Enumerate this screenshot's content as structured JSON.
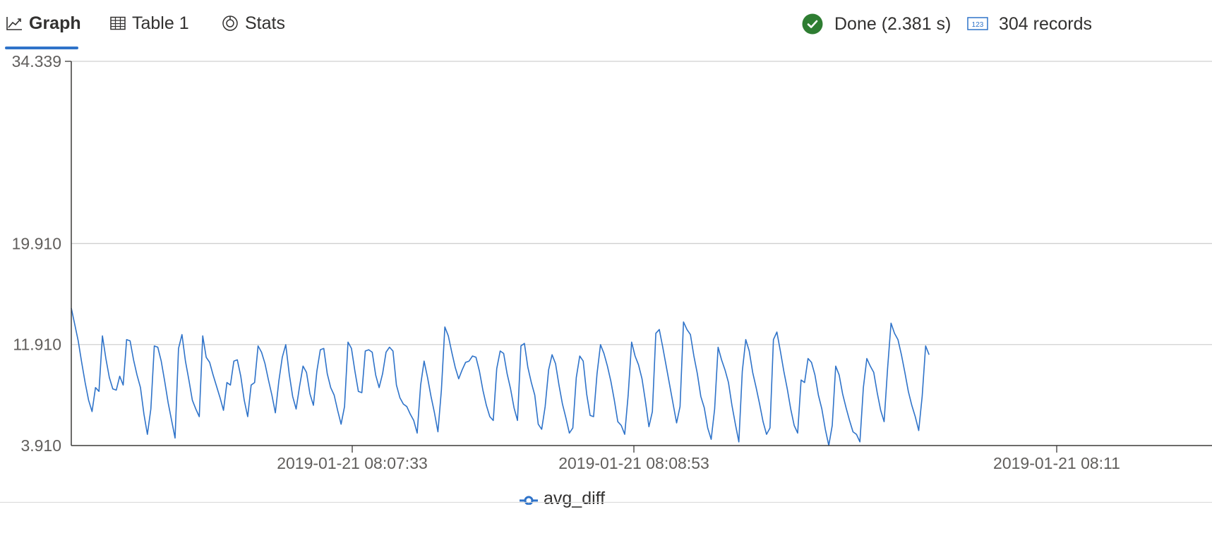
{
  "tabs": [
    {
      "label": "Graph",
      "icon": "line-chart-icon",
      "active": true
    },
    {
      "label": "Table 1",
      "icon": "table-icon",
      "active": false
    },
    {
      "label": "Stats",
      "icon": "stats-icon",
      "active": false
    }
  ],
  "status": {
    "done_label": "Done (2.381 s)",
    "done_icon": "check-circle-icon",
    "records_label": "304 records",
    "records_icon": "number-123-icon"
  },
  "colors": {
    "accent": "#2f73c9",
    "success": "#2e7d32",
    "series": "#2f73c9",
    "gridline": "#d0d0d0",
    "axis": "#3b3a39"
  },
  "chart_data": {
    "type": "line",
    "title": "",
    "xlabel": "",
    "ylabel": "",
    "ylim": [
      3.91,
      34.339
    ],
    "y_ticks": [
      3.91,
      11.91,
      19.91,
      34.339
    ],
    "y_tick_labels": [
      "3.910",
      "11.910",
      "19.910",
      "34.339"
    ],
    "x_tick_labels": [
      "2019-01-21 08:07:33",
      "2019-01-21 08:08:53",
      "2019-01-21 08:11"
    ],
    "grid": true,
    "legend": "bottom-center",
    "series": [
      {
        "name": "avg_diff",
        "values": [
          14.8,
          13.5,
          12.2,
          10.5,
          8.9,
          7.5,
          6.6,
          8.5,
          8.2,
          12.6,
          10.8,
          9.3,
          8.4,
          8.3,
          9.4,
          8.7,
          12.3,
          12.2,
          10.7,
          9.5,
          8.5,
          6.4,
          4.8,
          6.8,
          11.8,
          11.7,
          10.6,
          9.0,
          7.3,
          5.9,
          4.5,
          11.6,
          12.7,
          10.6,
          9.1,
          7.5,
          6.8,
          6.2,
          12.6,
          10.9,
          10.5,
          9.5,
          8.6,
          7.7,
          6.7,
          8.9,
          8.7,
          10.6,
          10.7,
          9.4,
          7.5,
          6.2,
          8.7,
          8.9,
          11.8,
          11.3,
          10.4,
          9.1,
          7.9,
          6.5,
          9.0,
          10.9,
          11.9,
          9.6,
          7.8,
          6.8,
          8.6,
          10.2,
          9.7,
          8.0,
          7.1,
          9.8,
          11.5,
          11.6,
          9.6,
          8.5,
          7.9,
          6.7,
          5.6,
          7.0,
          12.1,
          11.6,
          9.8,
          8.2,
          8.1,
          11.4,
          11.5,
          11.3,
          9.5,
          8.5,
          9.6,
          11.3,
          11.7,
          11.4,
          8.7,
          7.7,
          7.2,
          7.0,
          6.4,
          5.9,
          4.9,
          8.7,
          10.6,
          9.3,
          7.8,
          6.5,
          5.0,
          8.3,
          13.3,
          12.6,
          11.3,
          10.1,
          9.2,
          9.9,
          10.5,
          10.6,
          11.0,
          10.9,
          9.8,
          8.3,
          7.1,
          6.2,
          5.9,
          10.0,
          11.4,
          11.2,
          9.6,
          8.4,
          6.9,
          5.9,
          11.8,
          12.0,
          10.1,
          8.9,
          7.9,
          5.6,
          5.2,
          7.0,
          9.9,
          11.1,
          10.4,
          8.7,
          7.2,
          6.1,
          4.9,
          5.3,
          9.3,
          11.0,
          10.6,
          8.0,
          6.3,
          6.2,
          9.6,
          11.9,
          11.2,
          10.2,
          9.0,
          7.5,
          5.8,
          5.5,
          4.8,
          7.9,
          12.1,
          11.0,
          10.3,
          9.2,
          7.4,
          5.4,
          6.6,
          12.8,
          13.1,
          11.7,
          10.2,
          8.7,
          7.2,
          5.7,
          7.0,
          13.7,
          13.1,
          12.7,
          11.0,
          9.6,
          7.8,
          6.9,
          5.3,
          4.4,
          6.8,
          11.7,
          10.7,
          9.9,
          8.9,
          7.1,
          5.6,
          4.2,
          9.8,
          12.3,
          11.4,
          9.7,
          8.5,
          7.2,
          5.8,
          4.8,
          5.3,
          12.3,
          12.9,
          11.4,
          9.8,
          8.4,
          6.8,
          5.5,
          4.9,
          9.1,
          8.9,
          10.8,
          10.5,
          9.5,
          7.9,
          6.8,
          5.2,
          3.91,
          5.5,
          10.2,
          9.5,
          8.0,
          6.9,
          5.9,
          5.0,
          4.8,
          4.2,
          8.5,
          10.8,
          10.2,
          9.7,
          8.1,
          6.7,
          5.8,
          10.0,
          13.6,
          12.8,
          12.3,
          11.1,
          9.7,
          8.2,
          7.1,
          6.2,
          5.1,
          7.8,
          11.8,
          11.1
        ]
      }
    ]
  }
}
